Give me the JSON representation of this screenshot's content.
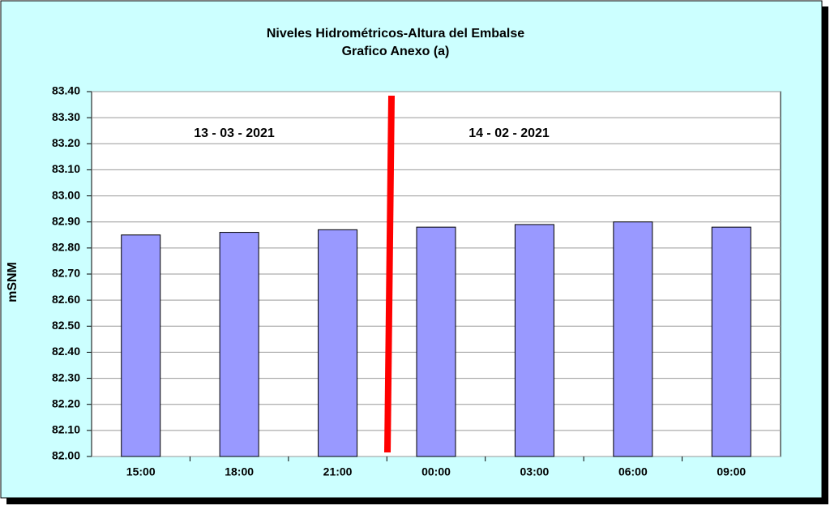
{
  "chart_data": {
    "type": "bar",
    "title": "Niveles Hidrométricos-Altura del Embalse",
    "subtitle": "Grafico Anexo (a)",
    "y_label": "mSNM",
    "annotations": [
      "13 - 03 - 2021",
      "14 - 02 - 2021"
    ],
    "categories": [
      "15:00",
      "18:00",
      "21:00",
      "00:00",
      "03:00",
      "06:00",
      "09:00"
    ],
    "values": [
      82.85,
      82.86,
      82.87,
      82.88,
      82.89,
      82.9,
      82.88
    ],
    "color": "#9999ff",
    "ylim": [
      82,
      83.4
    ],
    "yticks": [
      {
        "value": 82,
        "label": "82.00"
      },
      {
        "value": 82.1,
        "label": "82.10"
      },
      {
        "value": 82.2,
        "label": "82.20"
      },
      {
        "value": 82.3,
        "label": "82.30"
      },
      {
        "value": 82.4,
        "label": "82.40"
      },
      {
        "value": 82.5,
        "label": "82.50"
      },
      {
        "value": 82.6,
        "label": "82.60"
      },
      {
        "value": 82.7,
        "label": "82.70"
      },
      {
        "value": 82.8,
        "label": "82.80"
      },
      {
        "value": 82.9,
        "label": "82.90"
      },
      {
        "value": 83,
        "label": "83.00"
      },
      {
        "value": 83.1,
        "label": "83.10"
      },
      {
        "value": 83.2,
        "label": "83.20"
      },
      {
        "value": 83.3,
        "label": "83.30"
      },
      {
        "value": 83.4,
        "label": "83.40"
      }
    ],
    "grid": true
  }
}
